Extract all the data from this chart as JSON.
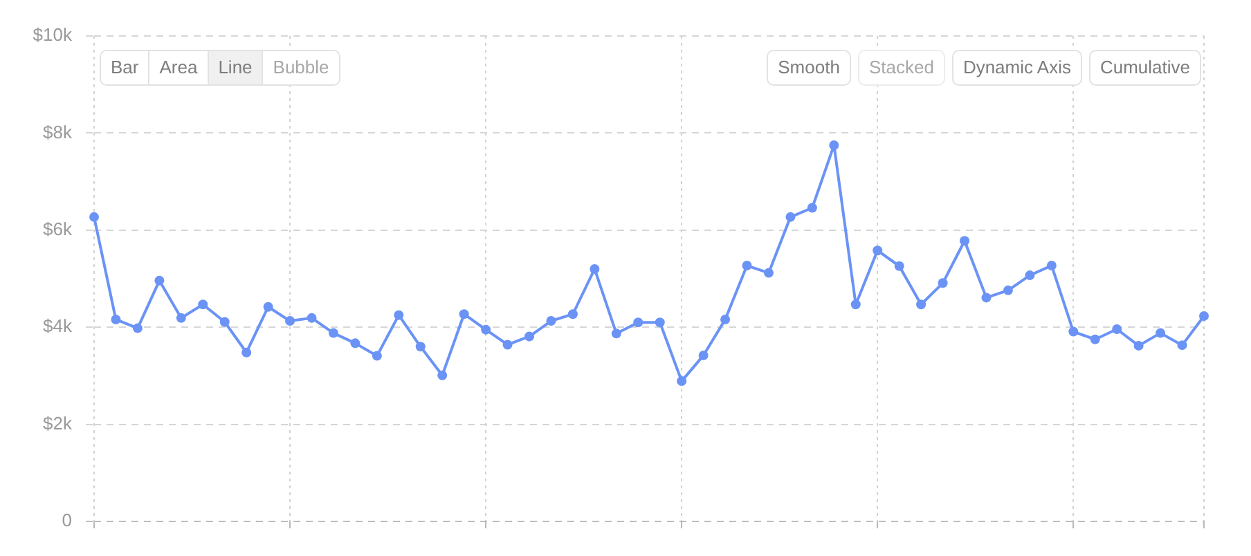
{
  "chart_data": {
    "type": "line",
    "categories": [
      null,
      null,
      null,
      null,
      null,
      null,
      null,
      null,
      null,
      null,
      null,
      null,
      null,
      null,
      null,
      null,
      null,
      null,
      null,
      null,
      null,
      null,
      null,
      null,
      null,
      null,
      null,
      null,
      null,
      null,
      null,
      null,
      null,
      null,
      null,
      null,
      null,
      null,
      null,
      null,
      null,
      null,
      null,
      null,
      null,
      null,
      null,
      null,
      null,
      null,
      null,
      null
    ],
    "series": [
      {
        "color": "#6b93f6",
        "values": [
          6270,
          4160,
          3980,
          4960,
          4190,
          4470,
          4110,
          3480,
          4420,
          4130,
          4190,
          3880,
          3670,
          3410,
          4250,
          3600,
          3010,
          4270,
          3950,
          3640,
          3810,
          4130,
          4270,
          5200,
          3870,
          4100,
          4100,
          2890,
          3420,
          4160,
          5270,
          5120,
          6270,
          6460,
          7750,
          4470,
          5580,
          5260,
          4470,
          4910,
          5780,
          4610,
          4760,
          5070,
          5270,
          3910,
          3750,
          3960,
          3620,
          3880,
          3630,
          4230
        ]
      }
    ],
    "ylim": [
      0,
      10000
    ],
    "yticks": [
      0,
      {
        "value": 2000,
        "label": "$2k"
      },
      {
        "value": 4000,
        "label": "$4k"
      },
      {
        "value": 6000,
        "label": "$6k"
      },
      {
        "value": 8000,
        "label": "$8k"
      },
      {
        "value": 10000,
        "label": "$10k"
      }
    ],
    "grid": true,
    "marker": "circle",
    "annotations": [
      "Bar",
      "Area",
      "Line",
      "Bubble",
      "Smooth",
      "Stacked",
      "Dynamic Axis",
      "Cumulative"
    ]
  }
}
